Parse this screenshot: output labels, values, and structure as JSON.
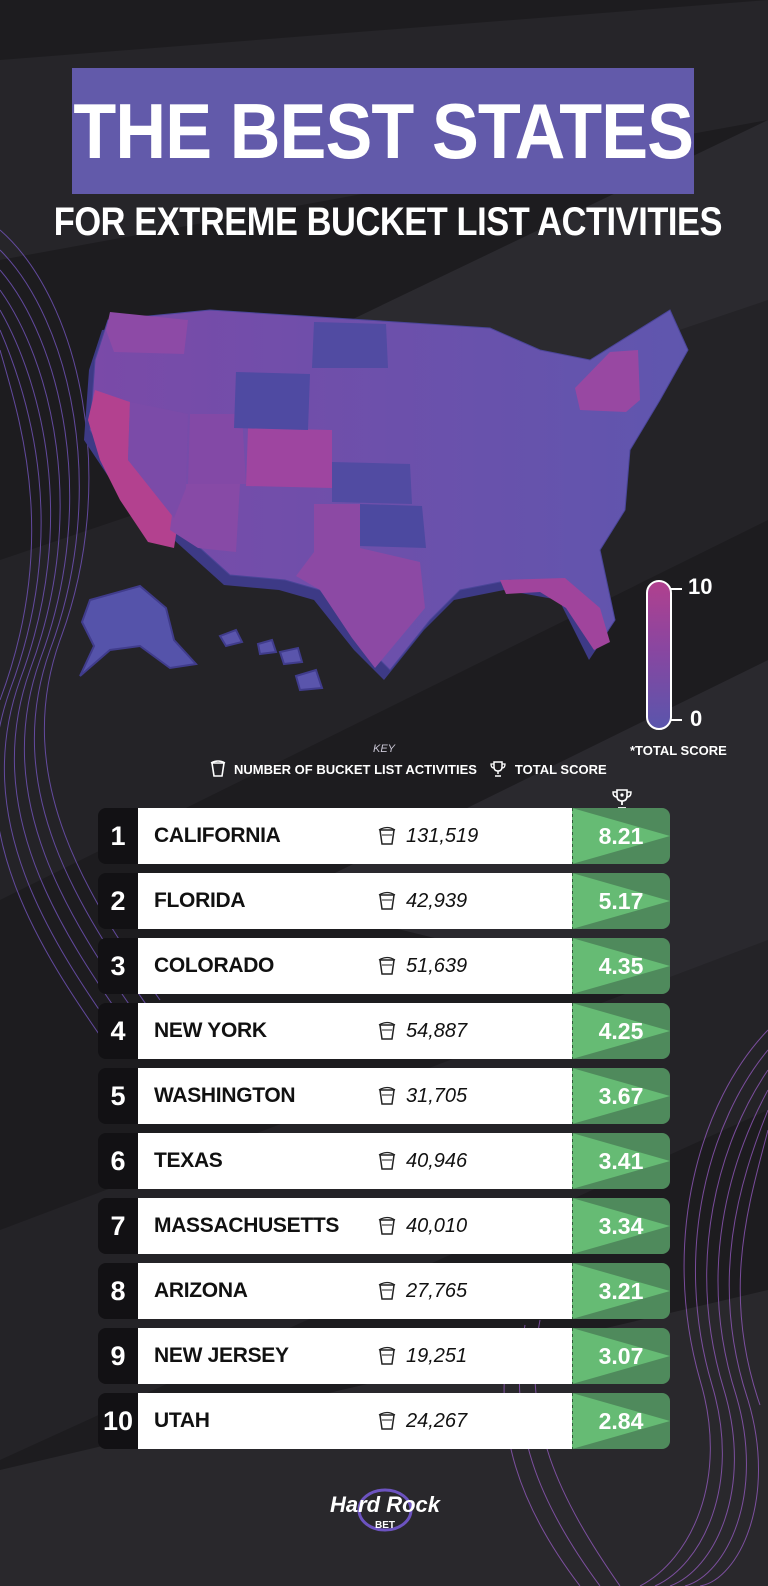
{
  "title": "THE BEST STATES",
  "subtitle": "FOR EXTREME BUCKET LIST ACTIVITIES",
  "scale": {
    "max_label": "10",
    "min_label": "0",
    "caption": "*TOTAL SCORE"
  },
  "key": {
    "title": "KEY",
    "activities_label": "NUMBER OF BUCKET LIST ACTIVITIES",
    "score_label": "TOTAL SCORE"
  },
  "rows": [
    {
      "rank": "1",
      "state": "CALIFORNIA",
      "activities": "131,519",
      "score": "8.21"
    },
    {
      "rank": "2",
      "state": "FLORIDA",
      "activities": "42,939",
      "score": "5.17"
    },
    {
      "rank": "3",
      "state": "COLORADO",
      "activities": "51,639",
      "score": "4.35"
    },
    {
      "rank": "4",
      "state": "NEW YORK",
      "activities": "54,887",
      "score": "4.25"
    },
    {
      "rank": "5",
      "state": "WASHINGTON",
      "activities": "31,705",
      "score": "3.67"
    },
    {
      "rank": "6",
      "state": "TEXAS",
      "activities": "40,946",
      "score": "3.41"
    },
    {
      "rank": "7",
      "state": "MASSACHUSETTS",
      "activities": "40,010",
      "score": "3.34"
    },
    {
      "rank": "8",
      "state": "ARIZONA",
      "activities": "27,765",
      "score": "3.21"
    },
    {
      "rank": "9",
      "state": "NEW JERSEY",
      "activities": "19,251",
      "score": "3.07"
    },
    {
      "rank": "10",
      "state": "UTAH",
      "activities": "24,267",
      "score": "2.84"
    }
  ],
  "logo": {
    "main": "Hard Rock",
    "sub": "BET"
  },
  "colors": {
    "background": "#1d1c1f",
    "title_box": "#625aaa",
    "map_high": "#b0408e",
    "map_low": "#5a55ac",
    "score_dark": "#4f8a5c",
    "score_light": "#66bb74"
  },
  "icons": {
    "activities": "bucket-icon",
    "score": "trophy-icon"
  }
}
